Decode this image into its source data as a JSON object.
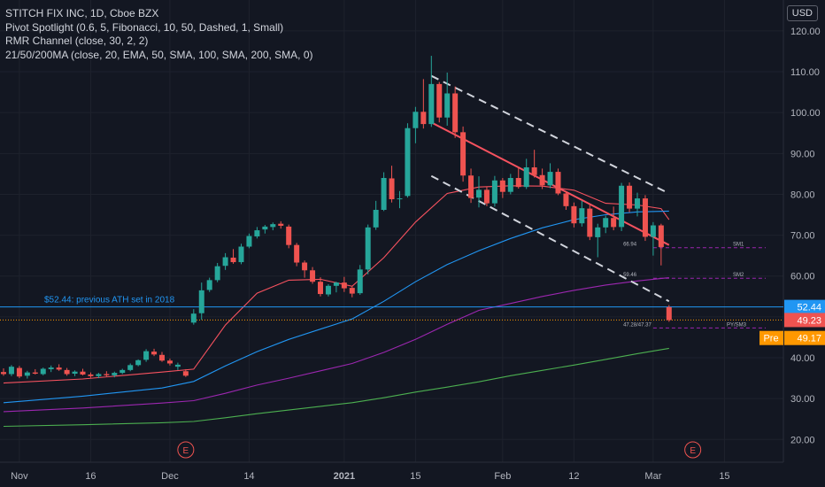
{
  "header": {
    "title": "STITCH FIX INC, 1D, Cboe BZX",
    "indicators": [
      "Pivot Spotlight (0.6, 5, Fibonacci, 10, 50, Dashed, 1, Small)",
      "RMR Channel (close, 30, 2, 2)",
      "21/50/200MA (close, 20, EMA, 50, SMA, 100, SMA, 200, SMA, 0)"
    ],
    "currency": "USD"
  },
  "colors": {
    "background": "#131722",
    "grid": "#1e222d",
    "up": "#26a69a",
    "down": "#ef5350",
    "ema20": "#f7525f",
    "sma50": "#2196f3",
    "sma100": "#9c27b0",
    "sma200": "#4caf50",
    "ath_line": "#2196f3",
    "channel": "#d1d4dc",
    "pivot": "#9c27b0",
    "premarket": "#ff9800"
  },
  "chart_data": {
    "type": "candlestick",
    "symbol": "STITCH FIX INC",
    "interval": "1D",
    "exchange": "Cboe BZX",
    "ylim": [
      15,
      124
    ],
    "y_ticks": [
      20,
      30,
      40,
      50,
      60,
      70,
      80,
      90,
      100,
      110,
      120
    ],
    "y_tick_labels": [
      "20.00",
      "30.00",
      "40.00",
      "50.00",
      "60.00",
      "70.00",
      "80.00",
      "90.00",
      "100.00",
      "110.00",
      "120.00"
    ],
    "x_tick_labels": [
      {
        "label": "Nov",
        "i": 2
      },
      {
        "label": "16",
        "i": 11
      },
      {
        "label": "Dec",
        "i": 21
      },
      {
        "label": "14",
        "i": 31
      },
      {
        "label": "2021",
        "i": 43
      },
      {
        "label": "15",
        "i": 52
      },
      {
        "label": "Feb",
        "i": 63
      },
      {
        "label": "12",
        "i": 72
      },
      {
        "label": "Mar",
        "i": 82
      },
      {
        "label": "15",
        "i": 91
      }
    ],
    "candles": [
      [
        36.5,
        37.4,
        35.6,
        36.0
      ],
      [
        36.0,
        38.2,
        35.5,
        37.8
      ],
      [
        37.5,
        38.0,
        35.0,
        35.4
      ],
      [
        35.6,
        36.8,
        34.9,
        36.4
      ],
      [
        36.4,
        37.2,
        35.9,
        36.1
      ],
      [
        36.0,
        37.6,
        35.7,
        37.3
      ],
      [
        37.2,
        38.1,
        36.5,
        37.6
      ],
      [
        37.6,
        38.4,
        36.8,
        37.1
      ],
      [
        37.0,
        37.5,
        35.6,
        36.0
      ],
      [
        36.1,
        36.9,
        35.5,
        36.6
      ],
      [
        36.6,
        37.3,
        35.7,
        35.9
      ],
      [
        35.9,
        36.4,
        35.1,
        35.5
      ],
      [
        35.5,
        36.3,
        35.0,
        36.0
      ],
      [
        36.0,
        36.7,
        35.4,
        35.7
      ],
      [
        35.7,
        36.6,
        35.2,
        36.3
      ],
      [
        36.3,
        37.3,
        36.0,
        37.0
      ],
      [
        37.0,
        38.6,
        36.7,
        38.2
      ],
      [
        38.2,
        39.6,
        37.9,
        39.4
      ],
      [
        39.5,
        42.1,
        39.0,
        41.6
      ],
      [
        41.5,
        42.2,
        40.4,
        40.8
      ],
      [
        40.7,
        41.4,
        39.0,
        39.3
      ],
      [
        39.3,
        39.8,
        38.1,
        38.6
      ],
      [
        37.8,
        38.8,
        37.0,
        38.3
      ],
      [
        36.7,
        37.2,
        35.3,
        35.6
      ],
      [
        48.6,
        51.9,
        48.1,
        50.8
      ],
      [
        50.9,
        58.4,
        49.3,
        56.5
      ],
      [
        56.6,
        59.6,
        56.1,
        59.0
      ],
      [
        59.0,
        63.2,
        58.5,
        62.4
      ],
      [
        62.5,
        65.6,
        61.5,
        64.6
      ],
      [
        64.5,
        66.6,
        63.0,
        63.4
      ],
      [
        63.4,
        67.9,
        62.9,
        67.2
      ],
      [
        67.2,
        70.4,
        66.8,
        69.8
      ],
      [
        69.7,
        72.0,
        69.2,
        71.2
      ],
      [
        71.4,
        72.5,
        70.4,
        72.1
      ],
      [
        72.0,
        73.1,
        71.2,
        72.7
      ],
      [
        72.8,
        73.4,
        71.6,
        72.3
      ],
      [
        72.1,
        72.6,
        66.8,
        67.6
      ],
      [
        67.6,
        68.1,
        62.4,
        63.3
      ],
      [
        63.3,
        63.8,
        59.6,
        61.4
      ],
      [
        61.4,
        62.2,
        58.1,
        58.6
      ],
      [
        58.6,
        59.7,
        55.0,
        55.6
      ],
      [
        55.5,
        58.0,
        55.0,
        57.6
      ],
      [
        57.6,
        58.6,
        56.0,
        58.4
      ],
      [
        58.4,
        59.8,
        56.1,
        57.0
      ],
      [
        57.1,
        57.6,
        54.8,
        55.7
      ],
      [
        55.8,
        62.7,
        55.4,
        61.6
      ],
      [
        61.6,
        72.6,
        60.4,
        71.9
      ],
      [
        71.9,
        78.4,
        71.3,
        76.2
      ],
      [
        76.2,
        85.4,
        75.9,
        84.0
      ],
      [
        83.9,
        87.0,
        78.0,
        78.8
      ],
      [
        78.8,
        80.8,
        76.6,
        79.0
      ],
      [
        79.6,
        97.4,
        79.2,
        96.2
      ],
      [
        96.2,
        101.4,
        92.5,
        100.2
      ],
      [
        100.2,
        108.2,
        96.1,
        97.2
      ],
      [
        97.2,
        113.9,
        96.5,
        107.0
      ],
      [
        107.0,
        107.5,
        97.6,
        98.8
      ],
      [
        98.8,
        109.8,
        96.8,
        104.7
      ],
      [
        104.7,
        106.4,
        93.8,
        95.2
      ],
      [
        95.2,
        96.6,
        83.1,
        84.6
      ],
      [
        84.6,
        86.3,
        77.9,
        79.1
      ],
      [
        79.2,
        84.4,
        76.8,
        81.1
      ],
      [
        81.1,
        81.9,
        77.1,
        77.8
      ],
      [
        77.8,
        84.5,
        77.0,
        83.4
      ],
      [
        83.4,
        84.0,
        79.1,
        80.6
      ],
      [
        80.6,
        85.0,
        80.0,
        84.0
      ],
      [
        84.0,
        86.8,
        81.4,
        81.8
      ],
      [
        81.8,
        88.7,
        81.3,
        86.6
      ],
      [
        86.6,
        90.9,
        84.1,
        84.7
      ],
      [
        84.7,
        86.3,
        81.3,
        82.2
      ],
      [
        82.2,
        87.6,
        81.5,
        85.5
      ],
      [
        85.5,
        86.3,
        79.8,
        80.2
      ],
      [
        80.2,
        80.7,
        76.2,
        77.1
      ],
      [
        77.1,
        78.0,
        71.9,
        72.9
      ],
      [
        72.9,
        78.4,
        72.1,
        76.6
      ],
      [
        76.5,
        77.6,
        68.8,
        69.6
      ],
      [
        69.5,
        72.8,
        64.6,
        71.9
      ],
      [
        71.9,
        74.8,
        70.5,
        74.2
      ],
      [
        74.2,
        77.0,
        71.2,
        72.0
      ],
      [
        72.0,
        82.8,
        71.0,
        82.1
      ],
      [
        82.1,
        82.9,
        75.6,
        76.5
      ],
      [
        76.5,
        80.4,
        74.6,
        79.0
      ],
      [
        79.0,
        79.8,
        68.6,
        69.6
      ],
      [
        69.6,
        73.2,
        65.0,
        72.4
      ],
      [
        72.4,
        72.8,
        62.6,
        67.1
      ],
      [
        52.4,
        52.9,
        48.8,
        49.23
      ]
    ],
    "series": [
      {
        "name": "EMA 20",
        "color": "#f7525f",
        "values": [
          [
            0,
            33.8
          ],
          [
            10,
            34.8
          ],
          [
            20,
            36.5
          ],
          [
            24,
            37.2
          ],
          [
            28,
            48.0
          ],
          [
            32,
            55.8
          ],
          [
            36,
            59.0
          ],
          [
            40,
            59.2
          ],
          [
            44,
            57.5
          ],
          [
            48,
            64.5
          ],
          [
            52,
            73.2
          ],
          [
            56,
            80.2
          ],
          [
            60,
            81.8
          ],
          [
            64,
            82.1
          ],
          [
            68,
            82.0
          ],
          [
            72,
            81.0
          ],
          [
            76,
            77.8
          ],
          [
            80,
            77.4
          ],
          [
            83,
            76.5
          ],
          [
            84,
            73.8
          ]
        ]
      },
      {
        "name": "SMA 50",
        "color": "#2196f3",
        "values": [
          [
            0,
            29.0
          ],
          [
            10,
            30.6
          ],
          [
            20,
            32.6
          ],
          [
            24,
            34.2
          ],
          [
            28,
            38.0
          ],
          [
            32,
            41.5
          ],
          [
            36,
            44.5
          ],
          [
            40,
            47.0
          ],
          [
            44,
            49.5
          ],
          [
            48,
            53.8
          ],
          [
            52,
            58.6
          ],
          [
            56,
            62.8
          ],
          [
            60,
            66.2
          ],
          [
            64,
            69.2
          ],
          [
            68,
            71.8
          ],
          [
            72,
            73.8
          ],
          [
            76,
            75.0
          ],
          [
            80,
            75.7
          ],
          [
            84,
            75.9
          ]
        ]
      },
      {
        "name": "SMA 100",
        "color": "#9c27b0",
        "values": [
          [
            0,
            26.8
          ],
          [
            10,
            27.7
          ],
          [
            20,
            28.9
          ],
          [
            24,
            29.5
          ],
          [
            28,
            31.3
          ],
          [
            32,
            33.3
          ],
          [
            36,
            35.0
          ],
          [
            40,
            36.8
          ],
          [
            44,
            38.6
          ],
          [
            48,
            41.3
          ],
          [
            52,
            44.5
          ],
          [
            56,
            48.2
          ],
          [
            60,
            51.6
          ],
          [
            64,
            53.3
          ],
          [
            68,
            55.0
          ],
          [
            72,
            56.5
          ],
          [
            76,
            57.8
          ],
          [
            80,
            58.8
          ],
          [
            84,
            59.6
          ]
        ]
      },
      {
        "name": "SMA 200",
        "color": "#4caf50",
        "values": [
          [
            0,
            23.2
          ],
          [
            10,
            23.6
          ],
          [
            20,
            24.1
          ],
          [
            24,
            24.4
          ],
          [
            28,
            25.3
          ],
          [
            32,
            26.3
          ],
          [
            36,
            27.2
          ],
          [
            40,
            28.1
          ],
          [
            44,
            29.0
          ],
          [
            48,
            30.2
          ],
          [
            52,
            31.6
          ],
          [
            56,
            32.8
          ],
          [
            60,
            34.1
          ],
          [
            64,
            35.6
          ],
          [
            68,
            36.9
          ],
          [
            72,
            38.2
          ],
          [
            76,
            39.6
          ],
          [
            80,
            41.0
          ],
          [
            84,
            42.3
          ]
        ]
      },
      {
        "name": "RMR Channel mid",
        "color": "#f7525f",
        "values": [
          [
            54,
            97.6
          ],
          [
            84,
            67.6
          ]
        ]
      },
      {
        "name": "RMR Channel upper",
        "color": "#d1d4dc",
        "dashed": true,
        "values": [
          [
            54,
            109.0
          ],
          [
            84,
            80.2
          ]
        ]
      },
      {
        "name": "RMR Channel lower",
        "color": "#d1d4dc",
        "dashed": true,
        "values": [
          [
            54,
            84.5
          ],
          [
            84,
            53.8
          ]
        ]
      }
    ],
    "pivot_levels": [
      {
        "label": "SM1",
        "value": 66.94,
        "text": "66.94"
      },
      {
        "label": "SM2",
        "value": 59.46,
        "text": "59.46"
      },
      {
        "label": "PY/SM3",
        "value": 47.28,
        "text": "47.28/47.37"
      }
    ],
    "reference_line": {
      "value": 52.44,
      "label": "$52.44: previous ATH set in 2018"
    },
    "price_labels": [
      {
        "value": 52.44,
        "text": "52.44",
        "color": "#2196f3"
      },
      {
        "value": 49.23,
        "text": "49.23",
        "color": "#ef5350"
      },
      {
        "value": 49.17,
        "text": "49.17",
        "prefix": "Pre",
        "color": "#ff9800"
      }
    ],
    "earnings_markers": [
      {
        "i": 23,
        "label": "E"
      },
      {
        "i": 87,
        "label": "E"
      }
    ]
  }
}
